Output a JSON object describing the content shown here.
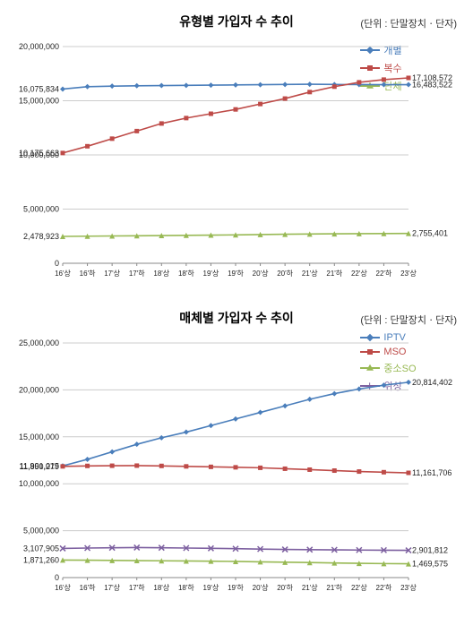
{
  "unit_label": "(단위 : 단말장치ㆍ단자)",
  "x_categories": [
    "16'상",
    "16'하",
    "17'상",
    "17'하",
    "18'상",
    "18'하",
    "19'상",
    "19'하",
    "20'상",
    "20'하",
    "21'상",
    "21'하",
    "22'상",
    "22'하",
    "23'상"
  ],
  "chart1": {
    "title": "유형별 가입자 수 추이",
    "type": "line",
    "background_color": "#ffffff",
    "grid_color": "#cccccc",
    "ylim": [
      0,
      20000000
    ],
    "yticks": [
      0,
      5000000,
      10000000,
      15000000,
      20000000
    ],
    "ytick_labels": [
      "0",
      "5,000,000",
      "10,000,000",
      "15,000,000",
      "20,000,000"
    ],
    "start_labels": [
      {
        "key": "s1",
        "text": "16,075,834",
        "y": 16075834,
        "color": "#4a7ebb"
      },
      {
        "key": "s2",
        "text": "10,175,663",
        "y": 10175663,
        "color": "#be4b48"
      },
      {
        "key": "s3",
        "text": "2,478,923",
        "y": 2478923,
        "color": "#98b954"
      }
    ],
    "end_labels": [
      {
        "key": "s2",
        "text": "17,108,572",
        "y": 17108572,
        "color": "#be4b48"
      },
      {
        "key": "s1",
        "text": "16,483,522",
        "y": 16483522,
        "color": "#4a7ebb"
      },
      {
        "key": "s3",
        "text": "2,755,401",
        "y": 2755401,
        "color": "#98b954"
      }
    ],
    "series": [
      {
        "name": "개별",
        "color": "#4a7ebb",
        "marker": "diamond",
        "values": [
          16075834,
          16300000,
          16350000,
          16380000,
          16400000,
          16420000,
          16440000,
          16460000,
          16480000,
          16500000,
          16520000,
          16500000,
          16490000,
          16486000,
          16483522
        ]
      },
      {
        "name": "복수",
        "color": "#be4b48",
        "marker": "square",
        "values": [
          10175663,
          10800000,
          11500000,
          12200000,
          12900000,
          13400000,
          13800000,
          14200000,
          14700000,
          15200000,
          15800000,
          16300000,
          16700000,
          16950000,
          17108572
        ]
      },
      {
        "name": "단체",
        "color": "#98b954",
        "marker": "triangle",
        "values": [
          2478923,
          2500000,
          2520000,
          2540000,
          2560000,
          2580000,
          2600000,
          2620000,
          2650000,
          2680000,
          2700000,
          2720000,
          2735000,
          2745000,
          2755401
        ]
      }
    ]
  },
  "chart2": {
    "title": "매체별 가입자 수 추이",
    "type": "line",
    "background_color": "#ffffff",
    "grid_color": "#cccccc",
    "ylim": [
      0,
      25000000
    ],
    "yticks": [
      0,
      5000000,
      10000000,
      15000000,
      20000000,
      25000000
    ],
    "ytick_labels": [
      "0",
      "5,000,000",
      "10,000,000",
      "15,000,000",
      "20,000,000",
      "25,000,000"
    ],
    "start_labels": [
      {
        "key": "s1",
        "text": "11,901,015",
        "y": 11901015,
        "color": "#4a7ebb"
      },
      {
        "key": "s2",
        "text": "11,850,279",
        "y": 11850279,
        "color": "#be4b48"
      },
      {
        "key": "s4",
        "text": "3,107,905",
        "y": 3107905,
        "color": "#7d60a0"
      },
      {
        "key": "s3",
        "text": "1,871,260",
        "y": 1871260,
        "color": "#98b954"
      }
    ],
    "end_labels": [
      {
        "key": "s1",
        "text": "20,814,402",
        "y": 20814402,
        "color": "#4a7ebb"
      },
      {
        "key": "s2",
        "text": "11,161,706",
        "y": 11161706,
        "color": "#be4b48"
      },
      {
        "key": "s4",
        "text": "2,901,812",
        "y": 2901812,
        "color": "#7d60a0"
      },
      {
        "key": "s3",
        "text": "1,469,575",
        "y": 1469575,
        "color": "#98b954"
      }
    ],
    "series": [
      {
        "name": "IPTV",
        "color": "#4a7ebb",
        "marker": "diamond",
        "values": [
          11901015,
          12600000,
          13400000,
          14200000,
          14900000,
          15500000,
          16200000,
          16900000,
          17600000,
          18300000,
          19000000,
          19600000,
          20100000,
          20500000,
          20814402
        ]
      },
      {
        "name": "MSO",
        "color": "#be4b48",
        "marker": "square",
        "values": [
          11850279,
          11900000,
          11920000,
          11930000,
          11900000,
          11850000,
          11800000,
          11750000,
          11700000,
          11600000,
          11500000,
          11400000,
          11300000,
          11230000,
          11161706
        ]
      },
      {
        "name": "중소SO",
        "color": "#98b954",
        "marker": "triangle",
        "values": [
          1871260,
          1850000,
          1830000,
          1810000,
          1790000,
          1770000,
          1750000,
          1720000,
          1680000,
          1640000,
          1600000,
          1560000,
          1520000,
          1490000,
          1469575
        ]
      },
      {
        "name": "위성",
        "color": "#7d60a0",
        "marker": "x",
        "values": [
          3107905,
          3150000,
          3180000,
          3200000,
          3180000,
          3150000,
          3120000,
          3080000,
          3040000,
          3000000,
          2975000,
          2955000,
          2935000,
          2920000,
          2901812
        ]
      }
    ]
  }
}
